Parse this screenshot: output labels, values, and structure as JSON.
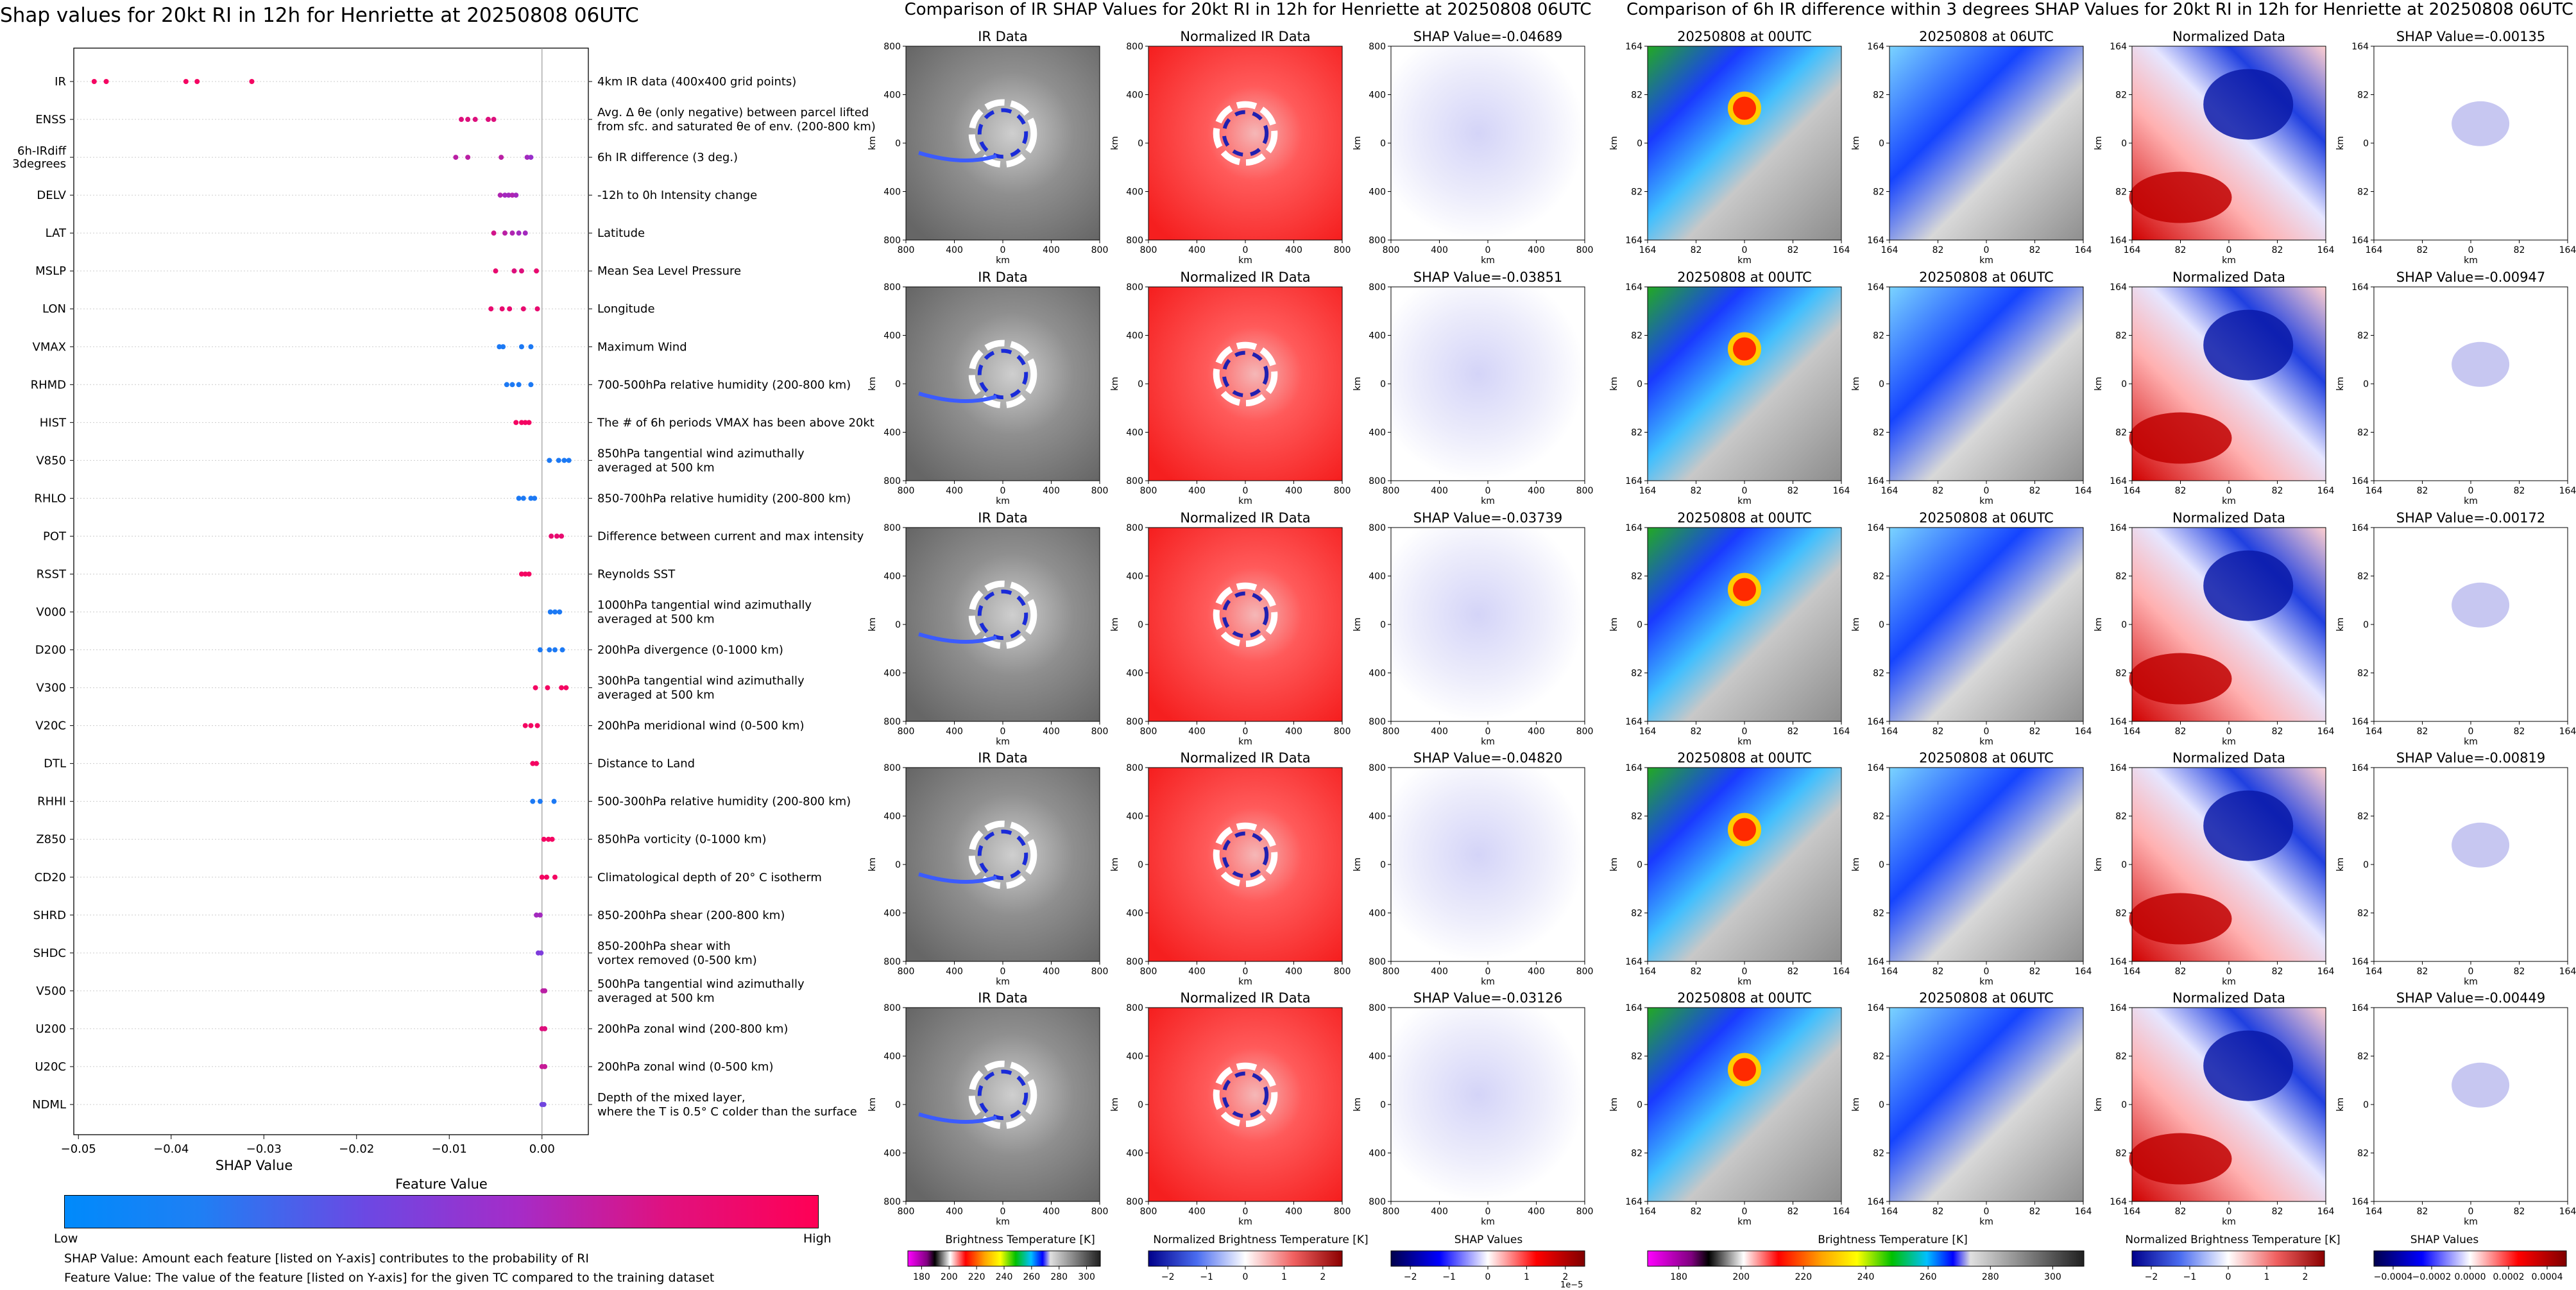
{
  "colors": {
    "feature_low": "#008afb",
    "feature_mid": "#8c33d8",
    "feature_high": "#ff0055",
    "shap_neg": "#0000cc",
    "shap_pos": "#cc0000"
  },
  "chart_data": [
    {
      "type": "scatter",
      "title": "Shap values for 20kt RI in 12h for Henriette at 20250808 06UTC",
      "xlabel": "SHAP Value",
      "ylabel": "",
      "xlim": [
        -0.0505,
        0.005
      ],
      "xticks": [
        {
          "value": -0.05,
          "label": "−0.05"
        },
        {
          "value": -0.04,
          "label": "−0.04"
        },
        {
          "value": -0.03,
          "label": "−0.03"
        },
        {
          "value": -0.02,
          "label": "−0.02"
        },
        {
          "value": -0.01,
          "label": "−0.01"
        },
        {
          "value": 0.0,
          "label": "0.00"
        }
      ],
      "zero_line": 0.0,
      "features": [
        {
          "name": "IR",
          "description": [
            "4km IR data (400x400 grid points)"
          ],
          "points": [
            [
              -0.0483,
              0.95
            ],
            [
              -0.047,
              0.95
            ],
            [
              -0.0384,
              0.95
            ],
            [
              -0.0372,
              0.95
            ],
            [
              -0.0313,
              0.95
            ]
          ]
        },
        {
          "name": "ENSS",
          "description": [
            "Avg. Δ θe (only negative) between parcel lifted",
            "from sfc. and saturated θe of env. (200-800 km)"
          ],
          "points": [
            [
              -0.0087,
              0.85
            ],
            [
              -0.008,
              0.85
            ],
            [
              -0.0072,
              0.85
            ],
            [
              -0.0058,
              0.85
            ],
            [
              -0.0052,
              0.85
            ]
          ]
        },
        {
          "name": "6h-IRdiff 3degrees",
          "description": [
            "6h IR difference (3 deg.)"
          ],
          "points": [
            [
              -0.0093,
              0.7
            ],
            [
              -0.008,
              0.7
            ],
            [
              -0.0044,
              0.7
            ],
            [
              -0.0016,
              0.6
            ],
            [
              -0.0012,
              0.55
            ]
          ]
        },
        {
          "name": "DELV",
          "description": [
            "-12h to 0h Intensity change"
          ],
          "points": [
            [
              -0.0045,
              0.65
            ],
            [
              -0.004,
              0.6
            ],
            [
              -0.0036,
              0.6
            ],
            [
              -0.0032,
              0.65
            ],
            [
              -0.0028,
              0.6
            ]
          ]
        },
        {
          "name": "LAT",
          "description": [
            "Latitude"
          ],
          "points": [
            [
              -0.0052,
              0.8
            ],
            [
              -0.004,
              0.7
            ],
            [
              -0.0032,
              0.65
            ],
            [
              -0.0025,
              0.6
            ],
            [
              -0.0018,
              0.6
            ]
          ]
        },
        {
          "name": "MSLP",
          "description": [
            "Mean Sea Level Pressure"
          ],
          "points": [
            [
              -0.005,
              0.9
            ],
            [
              -0.003,
              0.85
            ],
            [
              -0.0022,
              0.85
            ],
            [
              -0.0006,
              0.9
            ]
          ]
        },
        {
          "name": "LON",
          "description": [
            "Longitude"
          ],
          "points": [
            [
              -0.0055,
              0.9
            ],
            [
              -0.0043,
              0.9
            ],
            [
              -0.0035,
              0.9
            ],
            [
              -0.002,
              0.9
            ],
            [
              -0.0005,
              0.9
            ]
          ]
        },
        {
          "name": "VMAX",
          "description": [
            "Maximum Wind"
          ],
          "points": [
            [
              -0.0046,
              0.1
            ],
            [
              -0.0042,
              0.1
            ],
            [
              -0.0022,
              0.1
            ],
            [
              -0.0012,
              0.1
            ]
          ]
        },
        {
          "name": "RHMD",
          "description": [
            "700-500hPa relative humidity (200-800 km)"
          ],
          "points": [
            [
              -0.0038,
              0.1
            ],
            [
              -0.0032,
              0.1
            ],
            [
              -0.0025,
              0.1
            ],
            [
              -0.0012,
              0.1
            ]
          ]
        },
        {
          "name": "HIST",
          "description": [
            "The # of 6h periods VMAX has been above 20kt"
          ],
          "points": [
            [
              -0.0028,
              0.95
            ],
            [
              -0.0022,
              0.95
            ],
            [
              -0.0018,
              0.95
            ],
            [
              -0.0014,
              0.95
            ]
          ]
        },
        {
          "name": "V850",
          "description": [
            "850hPa tangential wind azimuthally",
            "averaged at 500 km"
          ],
          "points": [
            [
              0.0008,
              0.1
            ],
            [
              0.0018,
              0.1
            ],
            [
              0.0024,
              0.1
            ],
            [
              0.0029,
              0.1
            ]
          ]
        },
        {
          "name": "RHLO",
          "description": [
            "850-700hPa relative humidity (200-800 km)"
          ],
          "points": [
            [
              -0.0025,
              0.1
            ],
            [
              -0.002,
              0.1
            ],
            [
              -0.0012,
              0.1
            ],
            [
              -0.0008,
              0.1
            ]
          ]
        },
        {
          "name": "POT",
          "description": [
            "Difference between current and max intensity"
          ],
          "points": [
            [
              0.001,
              0.9
            ],
            [
              0.0016,
              0.9
            ],
            [
              0.0021,
              0.9
            ]
          ]
        },
        {
          "name": "RSST",
          "description": [
            "Reynolds SST"
          ],
          "points": [
            [
              -0.0022,
              0.95
            ],
            [
              -0.0018,
              0.95
            ],
            [
              -0.0014,
              0.95
            ]
          ]
        },
        {
          "name": "V000",
          "description": [
            "1000hPa tangential wind azimuthally",
            "averaged at 500 km"
          ],
          "points": [
            [
              0.0009,
              0.1
            ],
            [
              0.0014,
              0.1
            ],
            [
              0.0019,
              0.1
            ]
          ]
        },
        {
          "name": "D200",
          "description": [
            "200hPa divergence (0-1000 km)"
          ],
          "points": [
            [
              -0.0002,
              0.1
            ],
            [
              0.0008,
              0.1
            ],
            [
              0.0014,
              0.1
            ],
            [
              0.0022,
              0.1
            ]
          ]
        },
        {
          "name": "V300",
          "description": [
            "300hPa tangential wind azimuthally",
            "averaged at 500 km"
          ],
          "points": [
            [
              -0.0007,
              0.95
            ],
            [
              0.0006,
              0.95
            ],
            [
              0.0021,
              0.95
            ],
            [
              0.0026,
              0.95
            ]
          ]
        },
        {
          "name": "V20C",
          "description": [
            "200hPa meridional wind (0-500 km)"
          ],
          "points": [
            [
              -0.0018,
              0.95
            ],
            [
              -0.0012,
              0.95
            ],
            [
              -0.0005,
              0.95
            ]
          ]
        },
        {
          "name": "DTL",
          "description": [
            "Distance to Land"
          ],
          "points": [
            [
              -0.001,
              0.95
            ],
            [
              -0.0006,
              0.95
            ]
          ]
        },
        {
          "name": "RHHI",
          "description": [
            "500-300hPa relative humidity (200-800 km)"
          ],
          "points": [
            [
              -0.001,
              0.1
            ],
            [
              -0.0002,
              0.1
            ],
            [
              0.0013,
              0.1
            ]
          ]
        },
        {
          "name": "Z850",
          "description": [
            "850hPa vorticity (0-1000 km)"
          ],
          "points": [
            [
              0.0002,
              0.95
            ],
            [
              0.0007,
              0.95
            ],
            [
              0.0011,
              0.95
            ]
          ]
        },
        {
          "name": "CD20",
          "description": [
            "Climatological depth of 20° C isotherm"
          ],
          "points": [
            [
              0.0,
              0.95
            ],
            [
              0.0005,
              0.95
            ],
            [
              0.0014,
              0.95
            ]
          ]
        },
        {
          "name": "SHRD",
          "description": [
            "850-200hPa shear (200-800 km)"
          ],
          "points": [
            [
              -0.0006,
              0.6
            ],
            [
              -0.0002,
              0.6
            ]
          ]
        },
        {
          "name": "SHDC",
          "description": [
            "850-200hPa shear with",
            "vortex removed (0-500 km)"
          ],
          "points": [
            [
              -0.0004,
              0.45
            ],
            [
              -0.0001,
              0.45
            ]
          ]
        },
        {
          "name": "V500",
          "description": [
            "500hPa tangential wind azimuthally",
            "averaged at 500 km"
          ],
          "points": [
            [
              0.0001,
              0.7
            ],
            [
              0.0003,
              0.7
            ]
          ]
        },
        {
          "name": "U200",
          "description": [
            "200hPa zonal wind (200-800 km)"
          ],
          "points": [
            [
              0.0,
              0.85
            ],
            [
              0.0003,
              0.85
            ]
          ]
        },
        {
          "name": "U20C",
          "description": [
            "200hPa zonal wind (0-500 km)"
          ],
          "points": [
            [
              0.0,
              0.75
            ],
            [
              0.0003,
              0.75
            ]
          ]
        },
        {
          "name": "NDML",
          "description": [
            "Depth of the mixed layer,",
            "where the T is 0.5° C colder than the surface"
          ],
          "points": [
            [
              0.0,
              0.4
            ],
            [
              0.0002,
              0.4
            ]
          ]
        }
      ],
      "colorbar": {
        "label": "Feature Value",
        "low": "Low",
        "high": "High"
      },
      "notes": [
        "SHAP Value: Amount each feature [listed on Y-axis] contributes to the probability of RI",
        "Feature Value: The value of the feature [listed on Y-axis] for the given TC compared to the training dataset"
      ]
    },
    {
      "type": "heatmap",
      "title": "Comparison of IR SHAP Values for 20kt RI in 12h for Henriette at 20250808 06UTC",
      "axis_label": "km",
      "xticks": [
        "800",
        "400",
        "0",
        "400",
        "800"
      ],
      "yticks": [
        "800",
        "400",
        "0",
        "400",
        "800"
      ],
      "column_titles": [
        "IR Data",
        "Normalized IR Data"
      ],
      "shap_values": [
        "SHAP Value=-0.04689",
        "SHAP Value=-0.03851",
        "SHAP Value=-0.03739",
        "SHAP Value=-0.04820",
        "SHAP Value=-0.03126"
      ],
      "colorbars": [
        {
          "label": "Brightness Temperature [K]",
          "ticks": [
            "180",
            "200",
            "220",
            "240",
            "260",
            "280",
            "300"
          ]
        },
        {
          "label": "Normalized Brightness Temperature [K]",
          "ticks": [
            "−2",
            "−1",
            "0",
            "1",
            "2"
          ]
        },
        {
          "label": "SHAP Values",
          "ticks": [
            "−2",
            "−1",
            "0",
            "1",
            "2"
          ],
          "offset": "1e−5"
        }
      ]
    },
    {
      "type": "heatmap",
      "title": "Comparison of 6h IR difference within 3 degrees SHAP Values for 20kt RI in 12h for Henriette at 20250808 06UTC",
      "axis_label": "km",
      "xticks": [
        "164",
        "82",
        "0",
        "82",
        "164"
      ],
      "yticks": [
        "164",
        "82",
        "0",
        "82",
        "164"
      ],
      "column_titles": [
        "20250808 at 00UTC",
        "20250808 at 06UTC",
        "Normalized Data"
      ],
      "shap_values": [
        "SHAP Value=-0.00135",
        "SHAP Value=-0.00947",
        "SHAP Value=-0.00172",
        "SHAP Value=-0.00819",
        "SHAP Value=-0.00449"
      ],
      "colorbars": [
        {
          "label": "Brightness Temperature [K]",
          "ticks": [
            "180",
            "200",
            "220",
            "240",
            "260",
            "280",
            "300"
          ]
        },
        {
          "label": "Normalized Brightness Temperature [K]",
          "ticks": [
            "−2",
            "−1",
            "0",
            "1",
            "2"
          ]
        },
        {
          "label": "SHAP Values",
          "ticks": [
            "−0.0004",
            "−0.0002",
            "0.0000",
            "0.0002",
            "0.0004"
          ]
        }
      ]
    }
  ]
}
